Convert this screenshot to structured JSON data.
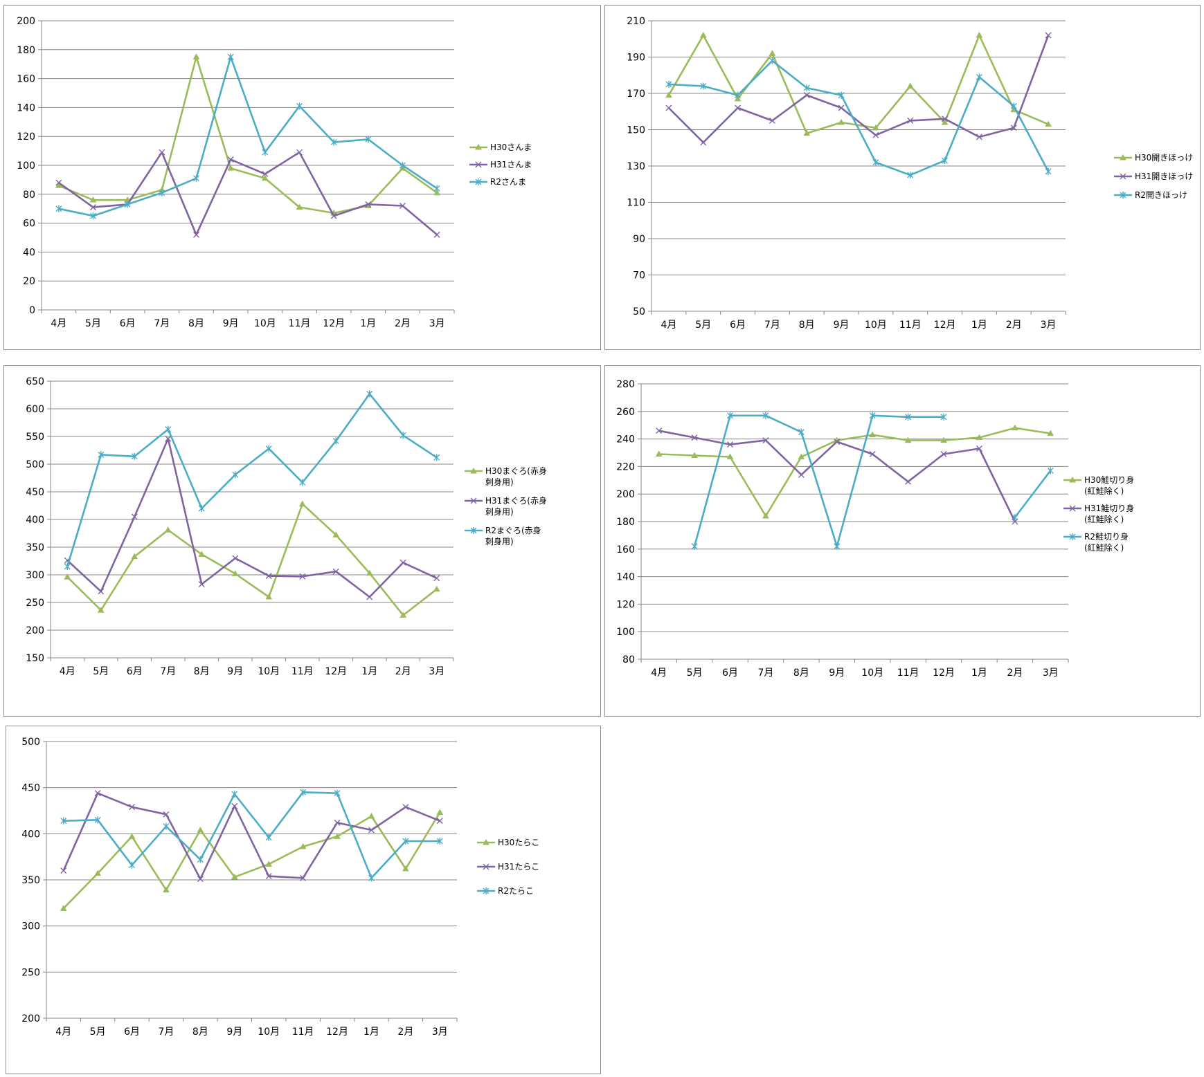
{
  "colors": {
    "H30": "#9bbb59",
    "H31": "#8064a2",
    "R2": "#4bacc6"
  },
  "months": [
    "4月",
    "5月",
    "6月",
    "7月",
    "8月",
    "9月",
    "10月",
    "11月",
    "12月",
    "1月",
    "2月",
    "3月"
  ],
  "chart_data": [
    {
      "type": "line",
      "categories": [
        "4月",
        "5月",
        "6月",
        "7月",
        "8月",
        "9月",
        "10月",
        "11月",
        "12月",
        "1月",
        "2月",
        "3月"
      ],
      "ylim": [
        0,
        200
      ],
      "yticks": [
        0,
        20,
        40,
        60,
        80,
        100,
        120,
        140,
        160,
        180,
        200
      ],
      "grid": true,
      "legend": "right",
      "series": [
        {
          "name": "H30さんま",
          "legend_lines": [
            "H30さんま"
          ],
          "values": [
            86,
            76,
            76,
            83,
            175,
            98,
            91,
            71,
            67,
            72,
            98,
            81
          ]
        },
        {
          "name": "H31さんま",
          "legend_lines": [
            "H31さんま"
          ],
          "values": [
            88,
            71,
            73,
            109,
            52,
            104,
            94,
            109,
            65,
            73,
            72,
            52
          ]
        },
        {
          "name": "R2さんま",
          "legend_lines": [
            "R2さんま"
          ],
          "values": [
            70,
            65,
            73,
            81,
            91,
            175,
            109,
            141,
            116,
            118,
            100,
            84
          ]
        }
      ]
    },
    {
      "type": "line",
      "categories": [
        "4月",
        "5月",
        "6月",
        "7月",
        "8月",
        "9月",
        "10月",
        "11月",
        "12月",
        "1月",
        "2月",
        "3月"
      ],
      "ylim": [
        50,
        210
      ],
      "yticks": [
        50,
        70,
        90,
        110,
        130,
        150,
        170,
        190,
        210
      ],
      "grid": true,
      "legend": "right",
      "series": [
        {
          "name": "H30開きほっけ",
          "legend_lines": [
            "H30開きほっけ"
          ],
          "values": [
            169,
            202,
            167,
            192,
            148,
            154,
            151,
            174,
            154,
            202,
            161,
            153
          ]
        },
        {
          "name": "H31開きほっけ",
          "legend_lines": [
            "H31開きほっけ"
          ],
          "values": [
            162,
            143,
            162,
            155,
            169,
            162,
            147,
            155,
            156,
            146,
            151,
            202
          ]
        },
        {
          "name": "R2開きほっけ",
          "legend_lines": [
            "R2開きほっけ"
          ],
          "values": [
            175,
            174,
            169,
            188,
            173,
            169,
            132,
            125,
            133,
            179,
            163,
            127
          ]
        }
      ]
    },
    {
      "type": "line",
      "categories": [
        "4月",
        "5月",
        "6月",
        "7月",
        "8月",
        "9月",
        "10月",
        "11月",
        "12月",
        "1月",
        "2月",
        "3月"
      ],
      "ylim": [
        150,
        650
      ],
      "yticks": [
        150,
        200,
        250,
        300,
        350,
        400,
        450,
        500,
        550,
        600,
        650
      ],
      "grid": true,
      "legend": "right",
      "series": [
        {
          "name": "H30まぐろ(赤身刺身用)",
          "legend_lines": [
            "H30まぐろ(赤身",
            "刺身用)"
          ],
          "values": [
            296,
            236,
            333,
            381,
            337,
            302,
            260,
            428,
            372,
            303,
            227,
            274
          ]
        },
        {
          "name": "H31まぐろ(赤身刺身用)",
          "legend_lines": [
            "H31まぐろ(赤身",
            "刺身用)"
          ],
          "values": [
            326,
            270,
            405,
            546,
            283,
            330,
            298,
            297,
            306,
            260,
            322,
            294
          ]
        },
        {
          "name": "R2まぐろ(赤身刺身用)",
          "legend_lines": [
            "R2まぐろ(赤身",
            "刺身用)"
          ],
          "values": [
            315,
            517,
            514,
            563,
            420,
            481,
            528,
            467,
            542,
            627,
            552,
            512
          ]
        }
      ]
    },
    {
      "type": "line",
      "categories": [
        "4月",
        "5月",
        "6月",
        "7月",
        "8月",
        "9月",
        "10月",
        "11月",
        "12月",
        "1月",
        "2月",
        "3月"
      ],
      "ylim": [
        80,
        280
      ],
      "yticks": [
        80,
        100,
        120,
        140,
        160,
        180,
        200,
        220,
        240,
        260,
        280
      ],
      "grid": true,
      "legend": "right",
      "series": [
        {
          "name": "H30鮭切り身(紅鮭除く)",
          "legend_lines": [
            "H30鮭切り身",
            "(紅鮭除く)"
          ],
          "values": [
            229,
            228,
            227,
            184,
            227,
            239,
            243,
            239,
            239,
            241,
            248,
            244
          ]
        },
        {
          "name": "H31鮭切り身(紅鮭除く)",
          "legend_lines": [
            "H31鮭切り身",
            "(紅鮭除く)"
          ],
          "values": [
            246,
            241,
            236,
            239,
            214,
            238,
            229,
            209,
            229,
            233,
            180,
            null
          ]
        },
        {
          "name": "R2鮭切り身(紅鮭除く)",
          "legend_lines": [
            "R2鮭切り身",
            "(紅鮭除く)"
          ],
          "values": [
            null,
            162,
            257,
            257,
            245,
            162,
            257,
            256,
            256,
            null,
            183,
            217
          ]
        }
      ]
    },
    {
      "type": "line",
      "categories": [
        "4月",
        "5月",
        "6月",
        "7月",
        "8月",
        "9月",
        "10月",
        "11月",
        "12月",
        "1月",
        "2月",
        "3月"
      ],
      "ylim": [
        200,
        500
      ],
      "yticks": [
        200,
        250,
        300,
        350,
        400,
        450,
        500
      ],
      "grid": true,
      "legend": "right",
      "series": [
        {
          "name": "H30たらこ",
          "legend_lines": [
            "H30たらこ"
          ],
          "values": [
            319,
            357,
            397,
            339,
            404,
            353,
            367,
            386,
            397,
            419,
            362,
            423
          ]
        },
        {
          "name": "H31たらこ",
          "legend_lines": [
            "H31たらこ"
          ],
          "values": [
            360,
            444,
            429,
            421,
            351,
            430,
            354,
            352,
            412,
            404,
            429,
            414
          ]
        },
        {
          "name": "R2たらこ",
          "legend_lines": [
            "R2たらこ"
          ],
          "values": [
            414,
            415,
            366,
            408,
            372,
            443,
            396,
            445,
            444,
            352,
            392,
            392
          ]
        }
      ]
    }
  ]
}
